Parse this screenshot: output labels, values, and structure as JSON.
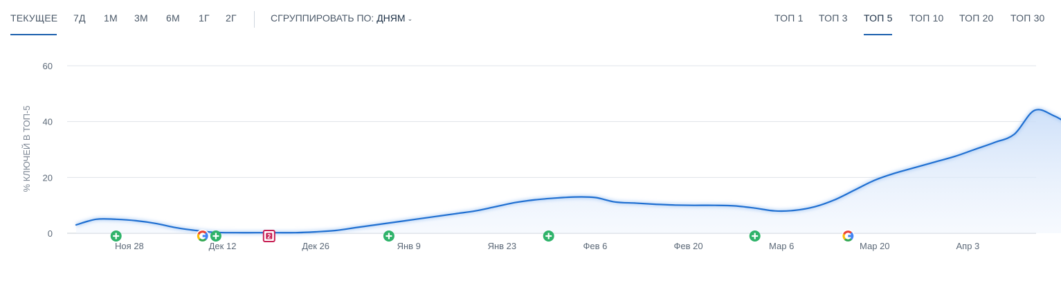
{
  "toolbar": {
    "periods": [
      "ТЕКУЩЕЕ",
      "7Д",
      "1М",
      "3М",
      "6М",
      "1Г",
      "2Г"
    ],
    "active_period": "ТЕКУЩЕЕ",
    "group_label": "СГРУППИРОВАТЬ ПО:",
    "group_value": "ДНЯМ",
    "tops": [
      "ТОП 1",
      "ТОП 3",
      "ТОП 5",
      "ТОП 10",
      "ТОП 20",
      "ТОП 30"
    ],
    "active_top": "ТОП 5",
    "icons": {
      "group_dropdown": "chevron-down-icon"
    }
  },
  "colors": {
    "line": "#1f6fd1",
    "area": "#dce9fb",
    "underline": "#1b5fad",
    "grid": "#dfe3e8",
    "add_marker": "#2fb36a",
    "update_marker": "#c81f54"
  },
  "chart_data": {
    "type": "area",
    "title": "",
    "ylabel": "% КЛЮЧЕЙ В ТОП-5",
    "xlabel": "",
    "ylim": [
      0,
      60
    ],
    "yticks": [
      0,
      20,
      40,
      60
    ],
    "grid": true,
    "x_start": "Ноя 20",
    "x_tick_labels": [
      "Ноя 28",
      "Дек 12",
      "Дек 26",
      "Янв 9",
      "Янв 23",
      "Фев 6",
      "Фев 20",
      "Мар 6",
      "Мар 20",
      "Апр 3"
    ],
    "series": [
      {
        "values": [
          3,
          5,
          5,
          4.5,
          3.5,
          2,
          1,
          0.3,
          0.2,
          0.2,
          0.2,
          0.2,
          0.5,
          1,
          2,
          3,
          4,
          5,
          6,
          7,
          8,
          9.5,
          11,
          12,
          12.6,
          13,
          12.8,
          11.2,
          10.8,
          10.4,
          10.1,
          10,
          10,
          9.8,
          9,
          8,
          8.2,
          9.5,
          12,
          15.5,
          19,
          21.5,
          23.5,
          25.5,
          27.5,
          30,
          32.5,
          35.5,
          44,
          42,
          38,
          35.5,
          34
        ]
      }
    ],
    "markers": [
      {
        "x": "Ноя 26",
        "type": "add-icon"
      },
      {
        "x": "Дек 9",
        "type": "google-icon"
      },
      {
        "x": "Дек 11",
        "type": "add-icon"
      },
      {
        "x": "Дек 19",
        "type": "update-icon",
        "label": "2"
      },
      {
        "x": "Янв 6",
        "type": "add-icon"
      },
      {
        "x": "Янв 30",
        "type": "add-icon"
      },
      {
        "x": "Мар 2",
        "type": "add-icon"
      },
      {
        "x": "Мар 16",
        "type": "google-icon"
      }
    ]
  }
}
